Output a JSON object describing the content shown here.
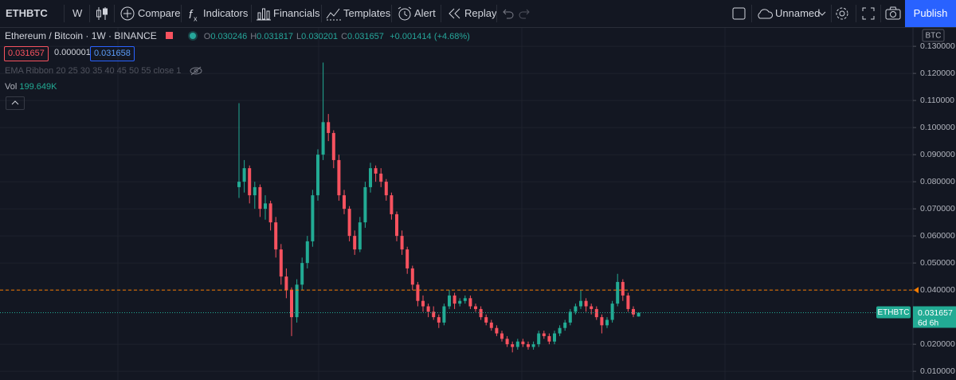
{
  "toolbar": {
    "symbol": "ETHBTC",
    "interval": "W",
    "items": [
      "Compare",
      "Indicators",
      "Financials",
      "Templates",
      "Alert",
      "Replay"
    ],
    "layout_name": "Unnamed",
    "publish": "Publish"
  },
  "legend": {
    "title": "Ethereum / Bitcoin · 1W · BINANCE",
    "ohlc": [
      {
        "label": "O",
        "value": "0.030246"
      },
      {
        "label": "H",
        "value": "0.031817"
      },
      {
        "label": "L",
        "value": "0.030201"
      },
      {
        "label": "C",
        "value": "0.031657"
      }
    ],
    "change": "+0.001414",
    "change_pct": "(+4.68%)"
  },
  "price_boxes": [
    "0.031657",
    "0.000001",
    "0.031658"
  ],
  "indicators": {
    "ema_ribbon": "EMA Ribbon 20 25 30 35 40 45 50 55 close 1",
    "vol_label": "Vol",
    "vol_value": "199.649K"
  },
  "chart": {
    "type": "candlestick",
    "currency": "BTC",
    "grid": true,
    "up_color": "#22ab94",
    "down_color": "#f7525f",
    "ylim": [
      0.0068,
      0.1368
    ],
    "yticks": [
      {
        "value": 0.13,
        "label": "0.130000"
      },
      {
        "value": 0.12,
        "label": "0.120000"
      },
      {
        "value": 0.11,
        "label": "0.110000"
      },
      {
        "value": 0.1,
        "label": "0.100000"
      },
      {
        "value": 0.09,
        "label": "0.090000"
      },
      {
        "value": 0.08,
        "label": "0.080000"
      },
      {
        "value": 0.07,
        "label": "0.070000"
      },
      {
        "value": 0.06,
        "label": "0.060000"
      },
      {
        "value": 0.05,
        "label": "0.050000"
      },
      {
        "value": 0.04,
        "label": "0.040000"
      },
      {
        "value": 0.02,
        "label": "0.020000"
      },
      {
        "value": 0.01,
        "label": "0.010000"
      }
    ],
    "alert_line": 0.04,
    "last_price": {
      "symbol": "ETHBTC",
      "value": 0.031657,
      "countdown": "6d 6h"
    },
    "candles": [
      [
        0.078,
        0.109,
        0.074,
        0.08
      ],
      [
        0.08,
        0.088,
        0.076,
        0.085
      ],
      [
        0.085,
        0.086,
        0.072,
        0.075
      ],
      [
        0.075,
        0.08,
        0.07,
        0.078
      ],
      [
        0.078,
        0.079,
        0.067,
        0.07
      ],
      [
        0.07,
        0.075,
        0.066,
        0.072
      ],
      [
        0.072,
        0.073,
        0.062,
        0.065
      ],
      [
        0.065,
        0.067,
        0.052,
        0.055
      ],
      [
        0.055,
        0.057,
        0.042,
        0.045
      ],
      [
        0.045,
        0.048,
        0.037,
        0.04
      ],
      [
        0.04,
        0.041,
        0.023,
        0.03
      ],
      [
        0.03,
        0.044,
        0.028,
        0.042
      ],
      [
        0.042,
        0.052,
        0.04,
        0.05
      ],
      [
        0.05,
        0.06,
        0.048,
        0.058
      ],
      [
        0.058,
        0.077,
        0.056,
        0.075
      ],
      [
        0.075,
        0.092,
        0.073,
        0.09
      ],
      [
        0.09,
        0.124,
        0.088,
        0.102
      ],
      [
        0.102,
        0.105,
        0.095,
        0.098
      ],
      [
        0.098,
        0.099,
        0.085,
        0.088
      ],
      [
        0.088,
        0.09,
        0.073,
        0.075
      ],
      [
        0.075,
        0.077,
        0.068,
        0.07
      ],
      [
        0.07,
        0.071,
        0.058,
        0.06
      ],
      [
        0.06,
        0.062,
        0.053,
        0.055
      ],
      [
        0.055,
        0.067,
        0.054,
        0.065
      ],
      [
        0.065,
        0.08,
        0.063,
        0.078
      ],
      [
        0.078,
        0.087,
        0.076,
        0.085
      ],
      [
        0.085,
        0.086,
        0.08,
        0.083
      ],
      [
        0.083,
        0.085,
        0.078,
        0.08
      ],
      [
        0.08,
        0.081,
        0.073,
        0.075
      ],
      [
        0.075,
        0.076,
        0.066,
        0.068
      ],
      [
        0.068,
        0.069,
        0.058,
        0.06
      ],
      [
        0.06,
        0.062,
        0.053,
        0.055
      ],
      [
        0.055,
        0.056,
        0.046,
        0.048
      ],
      [
        0.048,
        0.049,
        0.04,
        0.042
      ],
      [
        0.042,
        0.043,
        0.034,
        0.036
      ],
      [
        0.036,
        0.038,
        0.032,
        0.034
      ],
      [
        0.034,
        0.035,
        0.03,
        0.032
      ],
      [
        0.032,
        0.034,
        0.029,
        0.03
      ],
      [
        0.03,
        0.031,
        0.026,
        0.028
      ],
      [
        0.028,
        0.035,
        0.027,
        0.034
      ],
      [
        0.034,
        0.04,
        0.033,
        0.038
      ],
      [
        0.038,
        0.039,
        0.033,
        0.035
      ],
      [
        0.035,
        0.037,
        0.034,
        0.036
      ],
      [
        0.036,
        0.038,
        0.035,
        0.037
      ],
      [
        0.037,
        0.038,
        0.033,
        0.034
      ],
      [
        0.034,
        0.035,
        0.032,
        0.033
      ],
      [
        0.033,
        0.034,
        0.029,
        0.03
      ],
      [
        0.03,
        0.031,
        0.027,
        0.028
      ],
      [
        0.028,
        0.029,
        0.025,
        0.026
      ],
      [
        0.026,
        0.027,
        0.023,
        0.024
      ],
      [
        0.024,
        0.025,
        0.021,
        0.022
      ],
      [
        0.022,
        0.023,
        0.019,
        0.02
      ],
      [
        0.02,
        0.021,
        0.017,
        0.019
      ],
      [
        0.019,
        0.022,
        0.018,
        0.021
      ],
      [
        0.021,
        0.022,
        0.019,
        0.02
      ],
      [
        0.02,
        0.021,
        0.018,
        0.019
      ],
      [
        0.019,
        0.021,
        0.018,
        0.02
      ],
      [
        0.02,
        0.025,
        0.019,
        0.024
      ],
      [
        0.024,
        0.025,
        0.022,
        0.023
      ],
      [
        0.023,
        0.024,
        0.02,
        0.021
      ],
      [
        0.021,
        0.025,
        0.02,
        0.024
      ],
      [
        0.024,
        0.027,
        0.023,
        0.026
      ],
      [
        0.026,
        0.029,
        0.025,
        0.028
      ],
      [
        0.028,
        0.033,
        0.027,
        0.032
      ],
      [
        0.032,
        0.035,
        0.031,
        0.034
      ],
      [
        0.034,
        0.04,
        0.033,
        0.036
      ],
      [
        0.036,
        0.037,
        0.032,
        0.034
      ],
      [
        0.034,
        0.035,
        0.031,
        0.033
      ],
      [
        0.033,
        0.034,
        0.029,
        0.03
      ],
      [
        0.03,
        0.031,
        0.024,
        0.027
      ],
      [
        0.027,
        0.03,
        0.026,
        0.029
      ],
      [
        0.029,
        0.036,
        0.028,
        0.035
      ],
      [
        0.035,
        0.046,
        0.034,
        0.043
      ],
      [
        0.043,
        0.044,
        0.036,
        0.038
      ],
      [
        0.038,
        0.039,
        0.032,
        0.033
      ],
      [
        0.033,
        0.034,
        0.03,
        0.031
      ],
      [
        0.030246,
        0.031817,
        0.030201,
        0.031657
      ]
    ]
  }
}
